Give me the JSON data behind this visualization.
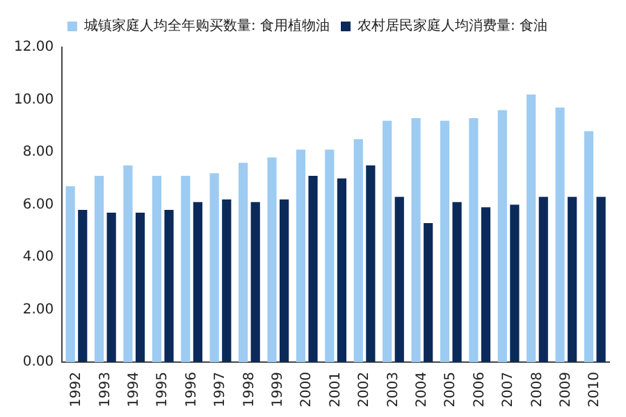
{
  "chart_data": {
    "type": "bar",
    "categories": [
      "1992",
      "1993",
      "1994",
      "1995",
      "1996",
      "1997",
      "1998",
      "1999",
      "2000",
      "2001",
      "2002",
      "2003",
      "2004",
      "2005",
      "2006",
      "2007",
      "2008",
      "2009",
      "2010"
    ],
    "series": [
      {
        "name": "城镇家庭人均全年购买数量: 食用植物油",
        "color": "#9dcbf2",
        "values": [
          6.7,
          7.1,
          7.5,
          7.1,
          7.1,
          7.2,
          7.6,
          7.8,
          8.1,
          8.1,
          8.5,
          9.2,
          9.3,
          9.2,
          9.3,
          9.6,
          10.2,
          9.7,
          8.8
        ]
      },
      {
        "name": "农村居民家庭人均消费量: 食油",
        "color": "#0b2a5a",
        "values": [
          5.8,
          5.7,
          5.7,
          5.8,
          6.1,
          6.2,
          6.1,
          6.2,
          7.1,
          7.0,
          7.5,
          6.3,
          5.3,
          6.1,
          5.9,
          6.0,
          6.3,
          6.3,
          6.3
        ]
      }
    ],
    "ylim": [
      0,
      12
    ],
    "yticks": [
      {
        "value": 0,
        "label": "0.00"
      },
      {
        "value": 2,
        "label": "2.00"
      },
      {
        "value": 4,
        "label": "4.00"
      },
      {
        "value": 6,
        "label": "6.00"
      },
      {
        "value": 8,
        "label": "8.00"
      },
      {
        "value": 10,
        "label": "10.00"
      },
      {
        "value": 12,
        "label": "12.00"
      }
    ],
    "grid": false,
    "legend": "top"
  }
}
